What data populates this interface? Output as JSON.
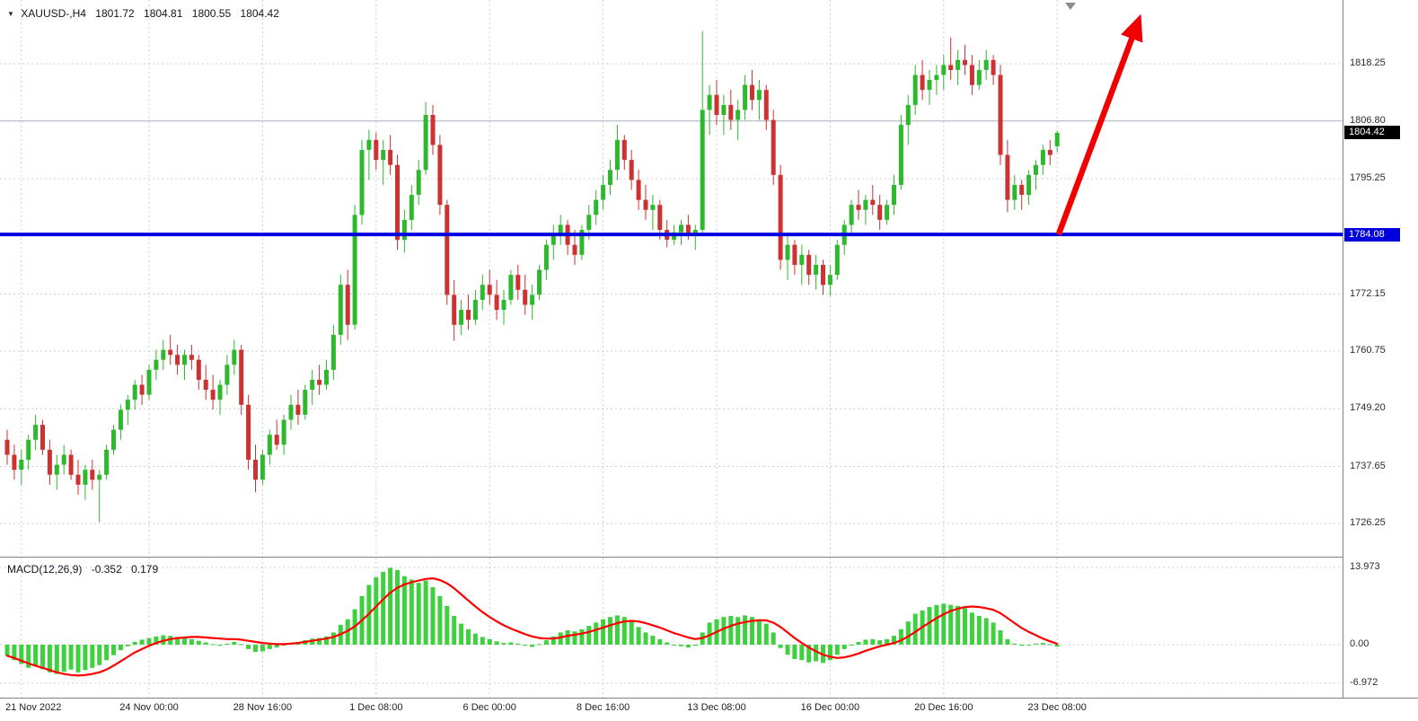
{
  "window": {
    "symbol_title": "XAUUSD-,H4",
    "ohlc": {
      "open": "1801.72",
      "high": "1804.81",
      "low": "1800.55",
      "close": "1804.42"
    }
  },
  "indicator": {
    "name": "MACD(12,26,9)",
    "main_value": "-0.352",
    "signal_value": "0.179"
  },
  "price_axis": {
    "labels": [
      "1818.25",
      "1806.80",
      "1795.25",
      "1772.15",
      "1760.75",
      "1749.20",
      "1737.65",
      "1726.25"
    ],
    "current_price": "1804.42",
    "hline_price": "1784.08"
  },
  "macd_axis": {
    "labels": [
      "13.973",
      "0.00",
      "-6.972"
    ]
  },
  "colors": {
    "background": "#ffffff",
    "grid": "#c9ced4",
    "bull": "#2eb82e",
    "bear": "#cc3232",
    "macd_bar": "#3fd03f",
    "signal": "#ff0000",
    "hline": "#0000e0",
    "minor_line": "#a8b6c4",
    "arrow": "#f20000",
    "axis_text": "#2b2b2b",
    "badge_current_bg": "#000000",
    "badge_hline_bg": "#0000dd",
    "separator": "#828282"
  },
  "chart_data": [
    {
      "type": "candlestick",
      "title": "XAUUSD H4 price",
      "x_unit": "H4 candles, 21 Nov 2022 - 23 Dec 2022",
      "price_view": {
        "top": 1831.0,
        "bottom": 1719.6
      },
      "price_gridline_values": [
        1818.25,
        1806.8,
        1795.25,
        1772.15,
        1760.75,
        1749.2,
        1737.65,
        1726.25
      ],
      "time_labels": [
        {
          "label": "21 Nov 2022",
          "index": 2
        },
        {
          "label": "24 Nov 00:00",
          "index": 20
        },
        {
          "label": "28 Nov 16:00",
          "index": 36
        },
        {
          "label": "1 Dec 08:00",
          "index": 52
        },
        {
          "label": "6 Dec 00:00",
          "index": 68
        },
        {
          "label": "8 Dec 16:00",
          "index": 84
        },
        {
          "label": "13 Dec 08:00",
          "index": 100
        },
        {
          "label": "16 Dec 00:00",
          "index": 116
        },
        {
          "label": "20 Dec 16:00",
          "index": 132
        },
        {
          "label": "23 Dec 08:00",
          "index": 148
        }
      ],
      "annotations": {
        "hline": {
          "price": 1784.08
        },
        "minor_hline": 1806.8,
        "current_price": 1804.42,
        "arrow": {
          "from": {
            "index": 148.2,
            "price": 1784.1
          },
          "to": {
            "index": 159.5,
            "price": 1827.0
          }
        }
      },
      "ohlc": [
        [
          1743,
          1745,
          1738,
          1740
        ],
        [
          1740,
          1742,
          1735,
          1737
        ],
        [
          1737,
          1741,
          1734,
          1739
        ],
        [
          1739,
          1744,
          1737,
          1743
        ],
        [
          1743,
          1748,
          1741,
          1746
        ],
        [
          1746,
          1747,
          1740,
          1741
        ],
        [
          1741,
          1743,
          1734,
          1736
        ],
        [
          1736,
          1740,
          1733,
          1738
        ],
        [
          1738,
          1742,
          1736,
          1740
        ],
        [
          1740,
          1741,
          1735,
          1736
        ],
        [
          1736,
          1739,
          1732,
          1734
        ],
        [
          1734,
          1738,
          1731,
          1737
        ],
        [
          1737,
          1739,
          1733,
          1735
        ],
        [
          1735,
          1737,
          1726.5,
          1736
        ],
        [
          1736,
          1742,
          1735,
          1741
        ],
        [
          1741,
          1746,
          1740,
          1745
        ],
        [
          1745,
          1750,
          1743,
          1749
        ],
        [
          1749,
          1752,
          1746,
          1751
        ],
        [
          1751,
          1755,
          1749,
          1754
        ],
        [
          1754,
          1756,
          1750,
          1752
        ],
        [
          1752,
          1758,
          1751,
          1757
        ],
        [
          1757,
          1761,
          1755,
          1759
        ],
        [
          1759,
          1763,
          1757,
          1761
        ],
        [
          1761,
          1764,
          1758,
          1760
        ],
        [
          1760,
          1762,
          1756,
          1758
        ],
        [
          1758,
          1761,
          1755,
          1760
        ],
        [
          1760,
          1762,
          1757,
          1759
        ],
        [
          1759,
          1760,
          1753,
          1755
        ],
        [
          1755,
          1758,
          1751,
          1753
        ],
        [
          1753,
          1756,
          1749,
          1751
        ],
        [
          1751,
          1755,
          1748,
          1754
        ],
        [
          1754,
          1760,
          1752,
          1758
        ],
        [
          1758,
          1763,
          1756,
          1761
        ],
        [
          1761,
          1762,
          1748,
          1750
        ],
        [
          1750,
          1752,
          1737,
          1739
        ],
        [
          1739,
          1742,
          1732.5,
          1735
        ],
        [
          1735,
          1741,
          1734,
          1740
        ],
        [
          1740,
          1745,
          1738,
          1744
        ],
        [
          1744,
          1747,
          1741,
          1742
        ],
        [
          1742,
          1748,
          1740,
          1747
        ],
        [
          1747,
          1752,
          1745,
          1750
        ],
        [
          1750,
          1753,
          1746,
          1748
        ],
        [
          1748,
          1754,
          1747,
          1753
        ],
        [
          1753,
          1757,
          1750,
          1755
        ],
        [
          1755,
          1758,
          1752,
          1754
        ],
        [
          1754,
          1759,
          1753,
          1757
        ],
        [
          1757,
          1766,
          1755,
          1764
        ],
        [
          1764,
          1776,
          1762,
          1774
        ],
        [
          1774,
          1777,
          1763,
          1766
        ],
        [
          1766,
          1790,
          1765,
          1788
        ],
        [
          1788,
          1803,
          1786,
          1801
        ],
        [
          1801,
          1805,
          1795,
          1803
        ],
        [
          1803,
          1804.5,
          1797,
          1799
        ],
        [
          1799,
          1803,
          1794,
          1801
        ],
        [
          1801,
          1804,
          1796,
          1798
        ],
        [
          1798,
          1800,
          1781,
          1783
        ],
        [
          1783,
          1789,
          1780.5,
          1787
        ],
        [
          1787,
          1794,
          1785,
          1792
        ],
        [
          1792,
          1799,
          1790,
          1797
        ],
        [
          1797,
          1810.6,
          1796,
          1808
        ],
        [
          1808,
          1810,
          1800,
          1802
        ],
        [
          1802,
          1804,
          1788,
          1790
        ],
        [
          1790,
          1791,
          1770,
          1772
        ],
        [
          1772,
          1775,
          1762.8,
          1766
        ],
        [
          1766,
          1771,
          1764,
          1769
        ],
        [
          1769,
          1772,
          1765,
          1767
        ],
        [
          1767,
          1773,
          1766,
          1771
        ],
        [
          1771,
          1776,
          1769,
          1774
        ],
        [
          1774,
          1777,
          1770,
          1772
        ],
        [
          1772,
          1775,
          1767,
          1769
        ],
        [
          1769,
          1773,
          1766,
          1771
        ],
        [
          1771,
          1777,
          1770,
          1776
        ],
        [
          1776,
          1778,
          1771,
          1773
        ],
        [
          1773,
          1776,
          1768,
          1770
        ],
        [
          1770,
          1774,
          1767,
          1772
        ],
        [
          1772,
          1778,
          1771,
          1777
        ],
        [
          1777,
          1783,
          1775,
          1782
        ],
        [
          1782,
          1786,
          1779,
          1784
        ],
        [
          1784,
          1788,
          1782,
          1786
        ],
        [
          1786,
          1787,
          1780,
          1782
        ],
        [
          1782,
          1785,
          1778,
          1780
        ],
        [
          1780,
          1786,
          1779,
          1785
        ],
        [
          1785,
          1790,
          1783,
          1788
        ],
        [
          1788,
          1793,
          1786,
          1791
        ],
        [
          1791,
          1796,
          1789,
          1794
        ],
        [
          1794,
          1799,
          1792,
          1797
        ],
        [
          1797,
          1806,
          1795,
          1803
        ],
        [
          1803,
          1804,
          1797,
          1799
        ],
        [
          1799,
          1801,
          1793,
          1795
        ],
        [
          1795,
          1797,
          1789,
          1791
        ],
        [
          1791,
          1794,
          1787,
          1789
        ],
        [
          1789,
          1792,
          1785,
          1790
        ],
        [
          1790,
          1791,
          1783,
          1785
        ],
        [
          1785,
          1787,
          1781.5,
          1783
        ],
        [
          1783,
          1786,
          1782,
          1784.5
        ],
        [
          1784.5,
          1787,
          1782,
          1786
        ],
        [
          1786,
          1788,
          1783,
          1784
        ],
        [
          1784,
          1786,
          1781,
          1785
        ],
        [
          1785,
          1824.8,
          1784,
          1809
        ],
        [
          1809,
          1814,
          1804,
          1812
        ],
        [
          1812,
          1815,
          1806,
          1808
        ],
        [
          1808,
          1812,
          1804,
          1810
        ],
        [
          1810,
          1813,
          1805,
          1807
        ],
        [
          1807,
          1811,
          1803,
          1809
        ],
        [
          1809,
          1816,
          1807,
          1814
        ],
        [
          1814,
          1817,
          1809,
          1811
        ],
        [
          1811,
          1815,
          1807,
          1813
        ],
        [
          1813,
          1814,
          1805,
          1807
        ],
        [
          1807,
          1809,
          1794,
          1796
        ],
        [
          1796,
          1798,
          1777,
          1779
        ],
        [
          1779,
          1784,
          1775,
          1782
        ],
        [
          1782,
          1783,
          1776,
          1778
        ],
        [
          1778,
          1782,
          1774,
          1780
        ],
        [
          1780,
          1781,
          1774,
          1776
        ],
        [
          1776,
          1780,
          1773,
          1778
        ],
        [
          1778,
          1779,
          1772,
          1774
        ],
        [
          1774,
          1778,
          1771.8,
          1776
        ],
        [
          1776,
          1783,
          1775,
          1782
        ],
        [
          1782,
          1787,
          1780,
          1786
        ],
        [
          1786,
          1791,
          1784,
          1790
        ],
        [
          1790,
          1793,
          1787,
          1789
        ],
        [
          1789,
          1792,
          1786,
          1791
        ],
        [
          1791,
          1794,
          1788,
          1790
        ],
        [
          1790,
          1792,
          1785,
          1787
        ],
        [
          1787,
          1791,
          1786,
          1790
        ],
        [
          1790,
          1796,
          1788,
          1794
        ],
        [
          1794,
          1808,
          1793,
          1806
        ],
        [
          1806,
          1812,
          1802,
          1810
        ],
        [
          1810,
          1818,
          1808,
          1816
        ],
        [
          1816,
          1819,
          1811,
          1813
        ],
        [
          1813,
          1817,
          1810,
          1815
        ],
        [
          1815,
          1818,
          1812,
          1816
        ],
        [
          1816,
          1820,
          1813,
          1818
        ],
        [
          1818,
          1823.5,
          1815,
          1817
        ],
        [
          1817,
          1821,
          1814,
          1819
        ],
        [
          1819,
          1822,
          1816,
          1818
        ],
        [
          1818,
          1820,
          1812,
          1814
        ],
        [
          1814,
          1819,
          1813,
          1817
        ],
        [
          1817,
          1821,
          1815,
          1819
        ],
        [
          1819,
          1820,
          1814,
          1816
        ],
        [
          1816,
          1818,
          1798,
          1800
        ],
        [
          1800,
          1803,
          1788.5,
          1791
        ],
        [
          1791,
          1796,
          1789,
          1794
        ],
        [
          1794,
          1795,
          1789,
          1792
        ],
        [
          1792,
          1797,
          1790,
          1796
        ],
        [
          1796,
          1799,
          1793,
          1798
        ],
        [
          1798,
          1802,
          1796,
          1801
        ],
        [
          1801,
          1803,
          1798,
          1800
        ],
        [
          1801.72,
          1804.81,
          1800.55,
          1804.42
        ]
      ]
    },
    {
      "type": "macd",
      "title": "MACD(12,26,9)",
      "view": {
        "top": 15.76,
        "bottom": -9.59
      },
      "axis_values": [
        13.973,
        0.0,
        -6.972
      ],
      "histogram": [
        -2.0,
        -2.8,
        -3.5,
        -4.2,
        -3.8,
        -4.4,
        -5.0,
        -5.3,
        -4.9,
        -4.5,
        -5.0,
        -4.6,
        -4.2,
        -3.7,
        -2.8,
        -1.9,
        -1.0,
        -0.3,
        0.5,
        0.9,
        1.2,
        1.5,
        1.7,
        1.6,
        1.4,
        1.2,
        1.0,
        0.7,
        0.4,
        0.1,
        -0.2,
        0.2,
        0.5,
        0.1,
        -0.8,
        -1.3,
        -1.2,
        -0.8,
        -0.5,
        -0.1,
        0.3,
        0.5,
        0.8,
        1.1,
        1.2,
        1.5,
        2.2,
        3.6,
        4.6,
        6.4,
        8.8,
        10.8,
        12.2,
        13.2,
        13.9,
        13.5,
        12.4,
        11.8,
        11.2,
        11.6,
        10.4,
        8.8,
        7.0,
        5.2,
        3.8,
        2.8,
        2.0,
        1.4,
        1.0,
        0.6,
        0.3,
        0.4,
        0.2,
        -0.2,
        -0.4,
        0.1,
        0.8,
        1.5,
        2.2,
        2.6,
        2.4,
        2.8,
        3.4,
        4.0,
        4.6,
        5.0,
        5.3,
        5.0,
        4.2,
        3.2,
        2.2,
        1.6,
        1.0,
        0.4,
        0.0,
        -0.3,
        -0.5,
        -0.2,
        2.2,
        4.0,
        4.6,
        5.0,
        5.2,
        5.0,
        5.3,
        5.0,
        4.6,
        3.8,
        2.2,
        -0.6,
        -1.8,
        -2.6,
        -2.8,
        -3.2,
        -3.0,
        -3.3,
        -2.8,
        -1.8,
        -0.8,
        0.0,
        0.5,
        0.9,
        1.0,
        0.8,
        1.0,
        1.6,
        2.8,
        4.2,
        5.6,
        6.2,
        6.8,
        7.2,
        7.4,
        7.2,
        7.0,
        6.6,
        5.8,
        5.2,
        4.8,
        4.0,
        2.6,
        1.0,
        0.2,
        -0.2,
        0.0,
        0.2,
        0.3,
        0.1,
        -0.352
      ],
      "signal": [
        -2.0,
        -2.4,
        -2.9,
        -3.4,
        -3.8,
        -4.2,
        -4.6,
        -5.0,
        -5.3,
        -5.5,
        -5.6,
        -5.5,
        -5.3,
        -5.0,
        -4.5,
        -3.8,
        -3.0,
        -2.2,
        -1.4,
        -0.8,
        -0.2,
        0.3,
        0.7,
        1.0,
        1.2,
        1.3,
        1.4,
        1.4,
        1.3,
        1.2,
        1.1,
        1.0,
        1.0,
        0.9,
        0.7,
        0.5,
        0.3,
        0.2,
        0.1,
        0.1,
        0.2,
        0.3,
        0.5,
        0.7,
        0.9,
        1.1,
        1.4,
        1.9,
        2.5,
        3.3,
        4.4,
        5.6,
        6.9,
        8.2,
        9.4,
        10.3,
        10.9,
        11.3,
        11.6,
        11.9,
        12.0,
        11.7,
        11.1,
        10.2,
        9.1,
        8.0,
        6.9,
        5.9,
        5.0,
        4.2,
        3.5,
        2.9,
        2.4,
        1.9,
        1.5,
        1.2,
        1.1,
        1.1,
        1.3,
        1.6,
        1.8,
        2.0,
        2.3,
        2.7,
        3.1,
        3.5,
        3.9,
        4.2,
        4.3,
        4.2,
        3.9,
        3.5,
        3.1,
        2.6,
        2.1,
        1.7,
        1.3,
        1.0,
        1.2,
        1.7,
        2.3,
        2.9,
        3.4,
        3.8,
        4.1,
        4.3,
        4.4,
        4.4,
        4.0,
        3.2,
        2.2,
        1.2,
        0.3,
        -0.5,
        -1.2,
        -1.8,
        -2.2,
        -2.4,
        -2.3,
        -2.0,
        -1.6,
        -1.1,
        -0.7,
        -0.3,
        0.0,
        0.3,
        0.8,
        1.5,
        2.3,
        3.2,
        4.0,
        4.8,
        5.5,
        6.1,
        6.5,
        6.8,
        6.9,
        6.8,
        6.6,
        6.3,
        5.7,
        4.8,
        3.9,
        3.0,
        2.3,
        1.7,
        1.1,
        0.6,
        0.179
      ]
    }
  ]
}
